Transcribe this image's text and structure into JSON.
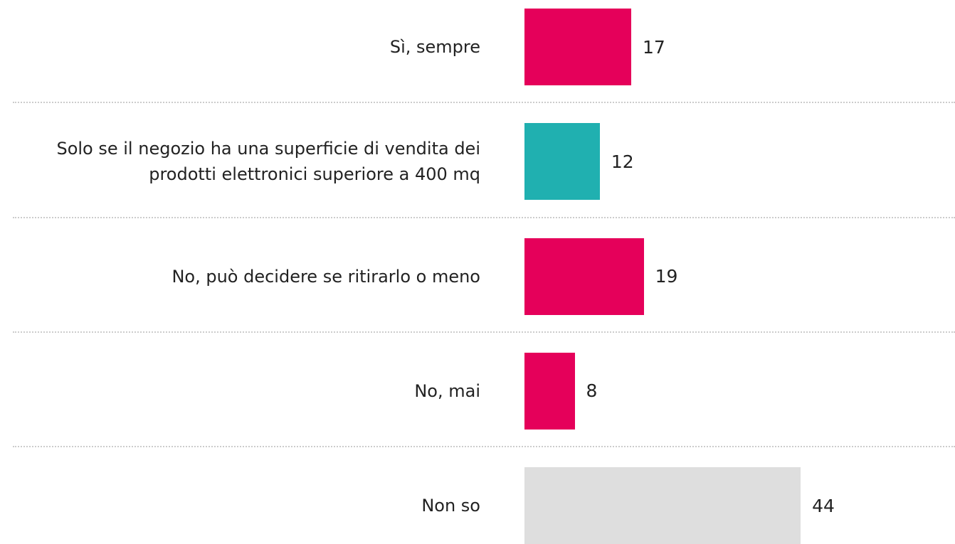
{
  "chart_data": {
    "type": "bar",
    "orientation": "horizontal",
    "categories": [
      "Sì, sempre",
      "Solo se il negozio ha una superficie di vendita dei prodotti elettronici superiore a 400 mq",
      "No, può decidere se ritirarlo o meno",
      "No, mai",
      "Non so"
    ],
    "values": [
      17,
      12,
      19,
      8,
      44
    ],
    "colors": [
      "#e5005a",
      "#20b0b0",
      "#e5005a",
      "#e5005a",
      "#dedede"
    ]
  }
}
